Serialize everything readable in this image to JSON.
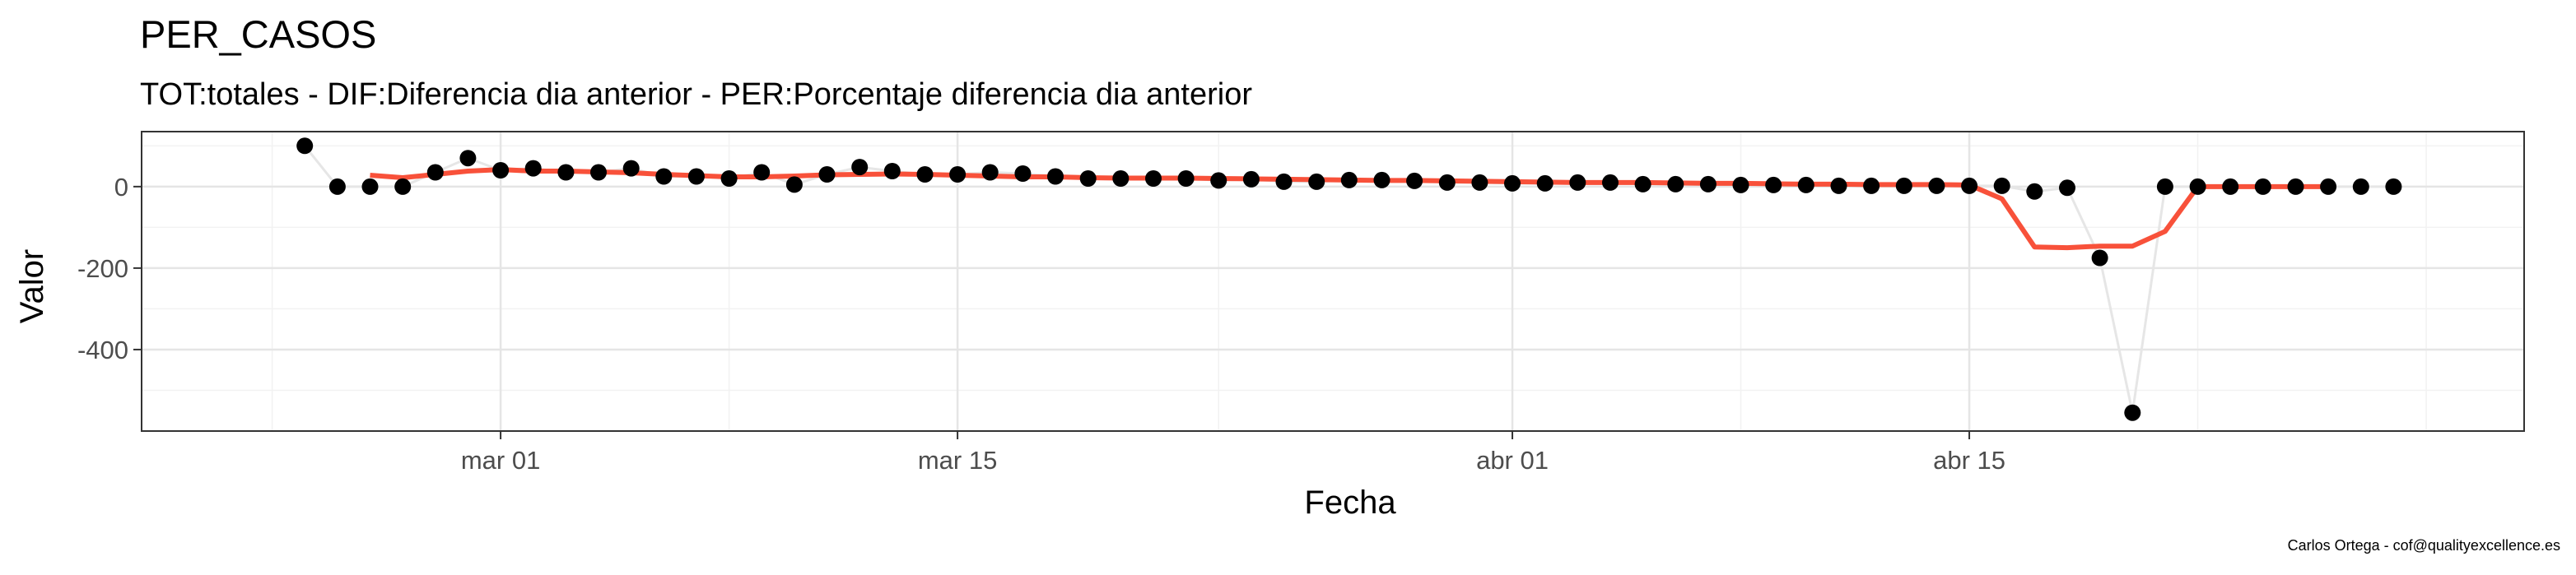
{
  "chart_data": {
    "type": "scatter",
    "title": "PER_CASOS",
    "subtitle": "TOT:totales - DIF:Diferencia dia anterior - PER:Porcentaje diferencia dia anterior",
    "xlabel": "Fecha",
    "ylabel": "Valor",
    "caption": "Carlos Ortega - cof@qualityexcellence.es",
    "x_ticks": [
      "mar 01",
      "mar 15",
      "abr 01",
      "abr 15"
    ],
    "y_ticks": [
      "0",
      "-200",
      "-400"
    ],
    "ylim": [
      -600,
      135
    ],
    "grid": true,
    "colors": {
      "points": "#000000",
      "connector": "#e6e6e6",
      "smooth": "#f8513a",
      "grid_major": "#e5e5e5",
      "grid_minor": "#f2f2f2",
      "frame": "#333333"
    },
    "series": [
      {
        "kind": "points",
        "x": [
          "2020-02-24",
          "2020-02-25",
          "2020-02-26",
          "2020-02-27",
          "2020-02-28",
          "2020-02-29",
          "2020-03-01",
          "2020-03-02",
          "2020-03-03",
          "2020-03-04",
          "2020-03-05",
          "2020-03-06",
          "2020-03-07",
          "2020-03-08",
          "2020-03-09",
          "2020-03-10",
          "2020-03-11",
          "2020-03-12",
          "2020-03-13",
          "2020-03-14",
          "2020-03-15",
          "2020-03-16",
          "2020-03-17",
          "2020-03-18",
          "2020-03-19",
          "2020-03-20",
          "2020-03-21",
          "2020-03-22",
          "2020-03-23",
          "2020-03-24",
          "2020-03-25",
          "2020-03-26",
          "2020-03-27",
          "2020-03-28",
          "2020-03-29",
          "2020-03-30",
          "2020-03-31",
          "2020-04-01",
          "2020-04-02",
          "2020-04-03",
          "2020-04-04",
          "2020-04-05",
          "2020-04-06",
          "2020-04-07",
          "2020-04-08",
          "2020-04-09",
          "2020-04-10",
          "2020-04-11",
          "2020-04-12",
          "2020-04-13",
          "2020-04-14",
          "2020-04-15",
          "2020-04-16",
          "2020-04-17",
          "2020-04-18",
          "2020-04-19",
          "2020-04-20",
          "2020-04-21",
          "2020-04-22",
          "2020-04-23",
          "2020-04-24",
          "2020-04-25",
          "2020-04-26",
          "2020-04-27",
          "2020-04-28"
        ],
        "y": [
          100,
          0,
          0,
          0,
          35,
          70,
          40,
          45,
          35,
          35,
          45,
          25,
          25,
          20,
          35,
          5,
          30,
          48,
          38,
          30,
          30,
          35,
          32,
          25,
          20,
          20,
          20,
          20,
          15,
          18,
          12,
          12,
          16,
          16,
          14,
          10,
          10,
          8,
          8,
          10,
          10,
          6,
          6,
          6,
          4,
          4,
          4,
          2,
          2,
          2,
          2,
          2,
          2,
          -12,
          -3,
          -175,
          -555,
          0,
          0,
          0,
          0,
          0,
          0,
          0,
          0
        ]
      },
      {
        "kind": "smooth",
        "x": [
          "2020-02-26",
          "2020-02-27",
          "2020-02-28",
          "2020-02-29",
          "2020-03-01",
          "2020-03-02",
          "2020-03-03",
          "2020-03-04",
          "2020-03-05",
          "2020-03-06",
          "2020-03-07",
          "2020-03-08",
          "2020-03-09",
          "2020-03-10",
          "2020-03-11",
          "2020-03-12",
          "2020-03-13",
          "2020-03-14",
          "2020-03-15",
          "2020-03-16",
          "2020-03-17",
          "2020-03-18",
          "2020-03-19",
          "2020-03-20",
          "2020-03-21",
          "2020-03-22",
          "2020-03-23",
          "2020-03-24",
          "2020-03-25",
          "2020-03-26",
          "2020-03-27",
          "2020-03-28",
          "2020-03-29",
          "2020-03-30",
          "2020-03-31",
          "2020-04-01",
          "2020-04-02",
          "2020-04-03",
          "2020-04-04",
          "2020-04-05",
          "2020-04-06",
          "2020-04-07",
          "2020-04-08",
          "2020-04-09",
          "2020-04-10",
          "2020-04-11",
          "2020-04-12",
          "2020-04-13",
          "2020-04-14",
          "2020-04-15",
          "2020-04-16",
          "2020-04-17",
          "2020-04-18",
          "2020-04-19",
          "2020-04-20",
          "2020-04-21",
          "2020-04-22",
          "2020-04-23",
          "2020-04-24",
          "2020-04-25",
          "2020-04-26"
        ],
        "y": [
          28,
          22,
          30,
          38,
          42,
          38,
          38,
          36,
          34,
          30,
          27,
          24,
          24,
          26,
          29,
          30,
          31,
          30,
          28,
          26,
          24,
          24,
          22,
          21,
          21,
          21,
          20,
          19,
          18,
          17,
          16,
          15,
          15,
          14,
          13,
          12,
          11,
          10,
          10,
          10,
          9,
          8,
          8,
          7,
          6,
          6,
          5,
          5,
          5,
          4,
          -30,
          -148,
          -150,
          -146,
          -146,
          -110,
          0,
          0,
          0,
          0,
          0
        ]
      }
    ]
  }
}
